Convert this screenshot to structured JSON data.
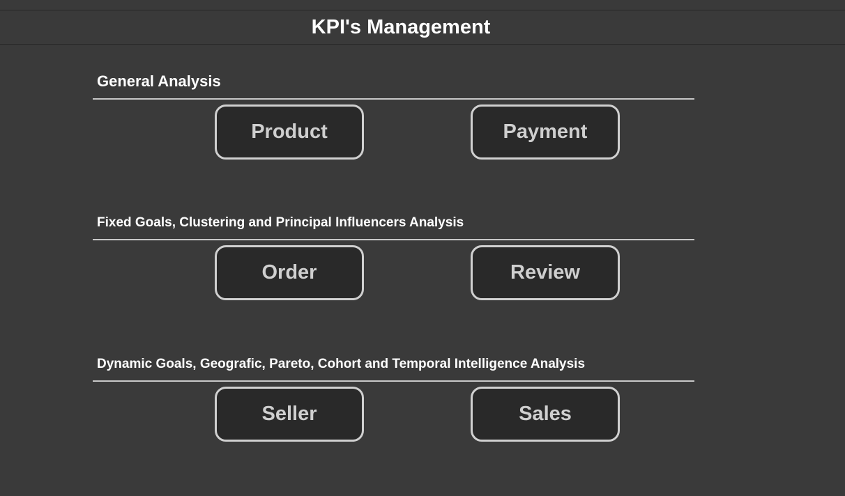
{
  "header": {
    "title": "KPI's Management"
  },
  "sections": [
    {
      "title": "General Analysis",
      "buttons": [
        "Product",
        "Payment"
      ]
    },
    {
      "title": "Fixed Goals, Clustering and Principal Influencers Analysis",
      "buttons": [
        "Order",
        "Review"
      ]
    },
    {
      "title": "Dynamic Goals, Geografic, Pareto, Cohort and Temporal Intelligence Analysis",
      "buttons": [
        "Seller",
        "Sales"
      ]
    }
  ],
  "colors": {
    "background": "#3a3a3a",
    "button_fill": "#292929",
    "button_border": "#d0d0d0",
    "button_text": "#cfcfcf",
    "title_text": "#ffffff"
  }
}
